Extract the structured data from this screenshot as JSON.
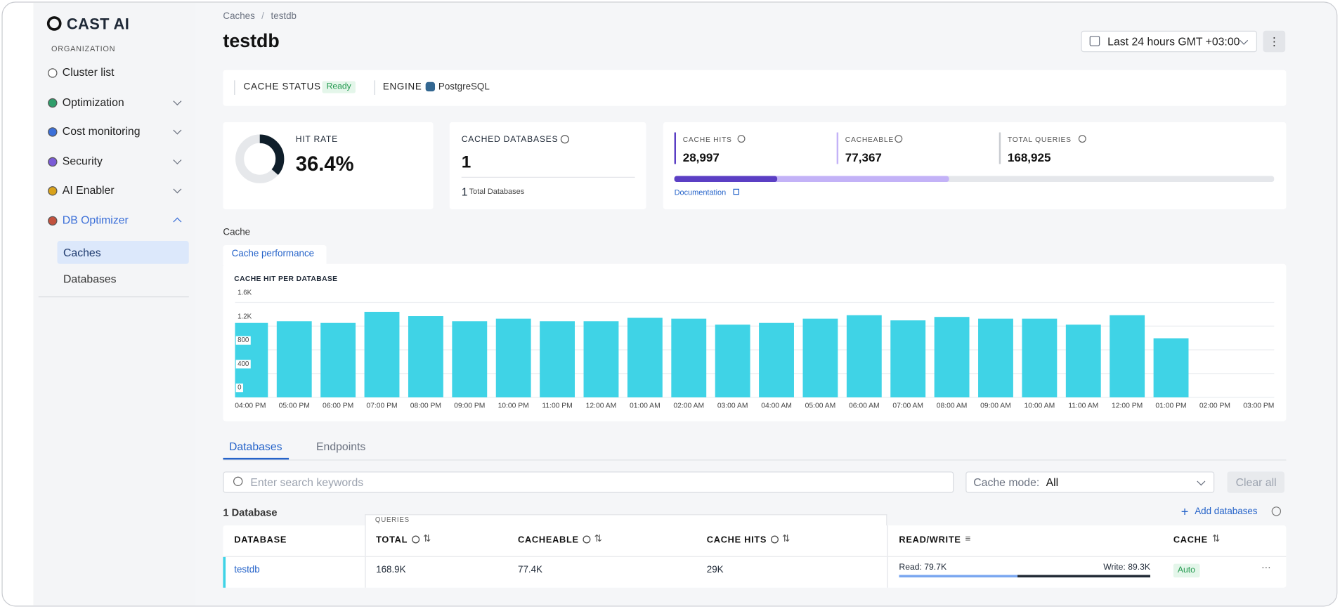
{
  "sidebar": {
    "logo": "CAST AI",
    "section": "ORGANIZATION",
    "items": [
      "Cluster list",
      "Optimization",
      "Cost monitoring",
      "Security",
      "AI Enabler",
      "DB Optimizer"
    ],
    "subitems": [
      "Caches",
      "Databases"
    ]
  },
  "header": {
    "breadcrumb": [
      "Caches",
      "testdb"
    ],
    "title": "testdb",
    "time_range": "Last 24 hours GMT +03:00"
  },
  "status": {
    "cache_status_label": "CACHE STATUS",
    "cache_status": "Ready",
    "engine_label": "ENGINE",
    "engine": "PostgreSQL"
  },
  "hit_rate": {
    "label": "HIT RATE",
    "value": 36.4,
    "value_label": "36.4%"
  },
  "cached_databases": {
    "label": "CACHED DATABASES",
    "value": 1,
    "total": 1,
    "total_label": "Total Databases"
  },
  "queries": {
    "items": [
      {
        "label": "CACHE HITS",
        "value": 28997,
        "value_label": "28,997",
        "color": "#5b3fc4"
      },
      {
        "label": "CACHEABLE",
        "value": 77367,
        "value_label": "77,367",
        "color": "#c3b2f7"
      },
      {
        "label": "TOTAL QUERIES",
        "value": 168925,
        "value_label": "168,925",
        "color": "#e5e7eb"
      }
    ],
    "link": "Documentation"
  },
  "section": {
    "title": "Cache",
    "tab": "Cache performance"
  },
  "chart_data": {
    "type": "bar",
    "title": "CACHE HIT PER DATABASE",
    "color": "#3fd3e6",
    "grid": true,
    "categories": [
      "04:00 PM",
      "05:00 PM",
      "06:00 PM",
      "07:00 PM",
      "08:00 PM",
      "09:00 PM",
      "10:00 PM",
      "11:00 PM",
      "12:00 AM",
      "01:00 AM",
      "02:00 AM",
      "03:00 AM",
      "04:00 AM",
      "05:00 AM",
      "06:00 AM",
      "07:00 AM",
      "08:00 AM",
      "09:00 AM",
      "10:00 AM",
      "11:00 AM",
      "12:00 PM",
      "01:00 PM",
      "02:00 PM",
      "03:00 PM"
    ],
    "values": [
      1254,
      1283,
      1254,
      1441,
      1369,
      1283,
      1326,
      1283,
      1283,
      1340,
      1326,
      1225,
      1254,
      1326,
      1384,
      1297,
      1355,
      1326,
      1326,
      1225,
      1384,
      995,
      null,
      null
    ],
    "ylim": [
      0,
      1600
    ],
    "yticks": [
      0,
      400,
      800,
      {
        "value": 1200,
        "label": "1.2K"
      },
      {
        "value": 1600,
        "label": "1.6K"
      }
    ]
  },
  "tabs": [
    "Databases",
    "Endpoints"
  ],
  "filters": {
    "search_placeholder": "Enter search keywords",
    "cache_mode_label": "Cache mode:",
    "cache_mode": "All",
    "clear": "Clear all"
  },
  "list": {
    "count": "1 Database",
    "add": "Add databases"
  },
  "table": {
    "group": "QUERIES",
    "columns": [
      "DATABASE",
      "TOTAL",
      "CACHEABLE",
      "CACHE HITS",
      "READ/WRITE",
      "CACHE"
    ],
    "rows": [
      {
        "database": "testdb",
        "total": "168.9K",
        "cacheable": "77.4K",
        "cache_hits": "29K",
        "read": {
          "label": "Read:",
          "value": 79700,
          "value_label": "79.7K"
        },
        "write": {
          "label": "Write:",
          "value": 89300,
          "value_label": "89.3K"
        },
        "cache": "Auto"
      }
    ]
  }
}
